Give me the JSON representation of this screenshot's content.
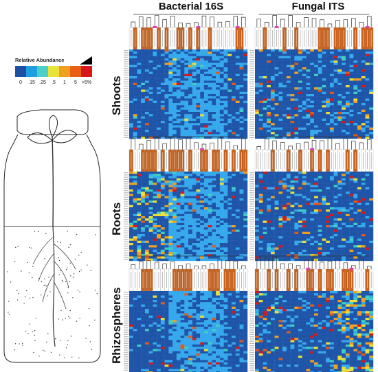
{
  "columns": [
    "Bacterial 16S",
    "Fungal ITS"
  ],
  "rows": [
    "Shoots",
    "Roots",
    "Rhizospheres"
  ],
  "legend": {
    "title": "Relative Abundance",
    "ticks": [
      "0",
      ".15",
      ".25",
      ".5",
      "1",
      "5",
      ">5%"
    ],
    "colors": [
      "#1f4fa3",
      "#1f9fe0",
      "#4ad0c8",
      "#e8e23a",
      "#f0a020",
      "#e86018",
      "#d81818"
    ]
  },
  "colors": {
    "low": "#1f55a8",
    "sky": "#36a8ee",
    "teal": "#3fd0c0",
    "yellow": "#eadf3a",
    "orange": "#f0a020",
    "red_orange": "#e05a18",
    "red": "#d81818",
    "header_orange": "#c8621e",
    "header_magenta": "#e040b0"
  },
  "chart_data": [
    {
      "type": "heatmap",
      "panel": "Shoots — Bacterial 16S",
      "columns": 30,
      "rows": 40,
      "description_scale": "relative abundance %"
    },
    {
      "type": "heatmap",
      "panel": "Shoots — Fungal ITS",
      "columns": 30,
      "rows": 40,
      "description_scale": "relative abundance %"
    },
    {
      "type": "heatmap",
      "panel": "Roots — Bacterial 16S",
      "columns": 30,
      "rows": 40,
      "description_scale": "relative abundance %"
    },
    {
      "type": "heatmap",
      "panel": "Roots — Fungal ITS",
      "columns": 30,
      "rows": 40,
      "description_scale": "relative abundance %"
    },
    {
      "type": "heatmap",
      "panel": "Rhizospheres — Bacterial 16S",
      "columns": 30,
      "rows": 40,
      "description_scale": "relative abundance %"
    },
    {
      "type": "heatmap",
      "panel": "Rhizospheres — Fungal ITS",
      "columns": 30,
      "rows": 40,
      "description_scale": "relative abundance %"
    }
  ]
}
